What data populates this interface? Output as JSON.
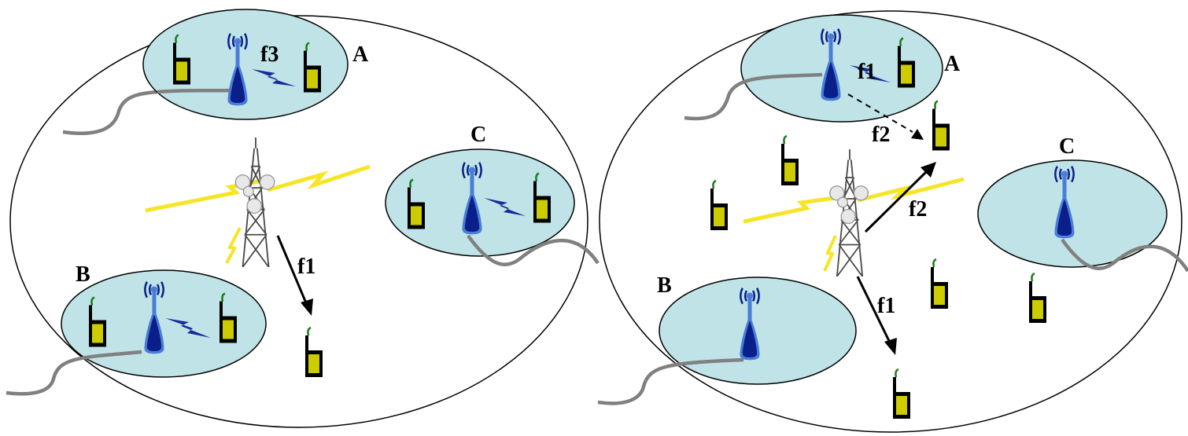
{
  "colors": {
    "background": "#ffffff",
    "small_cell_fill": "#bfe3e6",
    "outline": "#000000",
    "handset_body": "#cccc00",
    "handset_antenna": "#1a7a1a",
    "femto_dark": "#0a1f8a",
    "femto_light": "#4a7dd6",
    "backhaul_cable": "#808080",
    "lightning": "#f5e000",
    "lightning_dark": "#1a2a9a"
  },
  "icons": {
    "handset": "mobile-handset-icon",
    "femto": "femtocell-base-station-icon",
    "macro": "macro-tower-icon",
    "wireless": "wireless-link-icon",
    "cable": "backhaul-cable-icon"
  },
  "left_panel": {
    "labels": {
      "cell_a": "A",
      "cell_b": "B",
      "cell_c": "C"
    },
    "links": {
      "femto_a": "f3",
      "macro_downlink": "f1"
    }
  },
  "right_panel": {
    "labels": {
      "cell_a": "A",
      "cell_b": "B",
      "cell_c": "C"
    },
    "links": {
      "femto_a": "f1",
      "femto_a_to_handset": "f2",
      "macro_uplink": "f2",
      "macro_downlink": "f1"
    }
  }
}
